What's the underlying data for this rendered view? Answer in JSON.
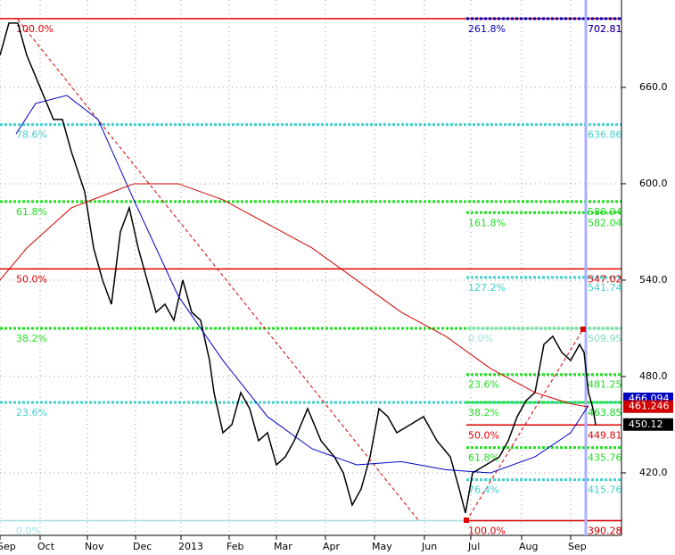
{
  "chart_data": {
    "type": "line",
    "xlim": [
      0,
      697
    ],
    "ylim": [
      381.1,
      714.4
    ],
    "yticks": [
      {
        "value": 420,
        "label": "420.0"
      },
      {
        "value": 480,
        "label": "480.0"
      },
      {
        "value": 540,
        "label": "540.0"
      },
      {
        "value": 600,
        "label": "600.0"
      },
      {
        "value": 660,
        "label": "660.0"
      }
    ],
    "xticks": [
      {
        "value": 0,
        "label": "Sep"
      },
      {
        "value": 45,
        "label": "Oct"
      },
      {
        "value": 98,
        "label": "Nov"
      },
      {
        "value": 152,
        "label": "Dec"
      },
      {
        "value": 203,
        "label": "2013"
      },
      {
        "value": 257,
        "label": "Feb"
      },
      {
        "value": 310,
        "label": "Mar"
      },
      {
        "value": 365,
        "label": "Apr"
      },
      {
        "value": 420,
        "label": "May"
      },
      {
        "value": 476,
        "label": "Jun"
      },
      {
        "value": 528,
        "label": "Jul"
      },
      {
        "value": 585,
        "label": "Aug"
      },
      {
        "value": 640,
        "label": "Sep"
      }
    ],
    "grid": true,
    "series": [
      {
        "color": "#000000",
        "x": [
          0,
          10,
          20,
          30,
          45,
          60,
          70,
          80,
          95,
          105,
          115,
          125,
          135,
          145,
          155,
          165,
          175,
          185,
          195,
          205,
          215,
          225,
          235,
          240,
          250,
          260,
          270,
          280,
          290,
          300,
          310,
          320,
          330,
          345,
          360,
          375,
          385,
          395,
          405,
          415,
          425,
          435,
          445,
          460,
          475,
          490,
          505,
          515,
          522,
          530,
          545,
          560,
          570,
          580,
          590,
          600,
          610,
          620,
          630,
          640,
          650,
          655,
          660,
          665,
          668
        ],
        "values": [
          680,
          700,
          700,
          680,
          660,
          640,
          640,
          620,
          595,
          560,
          540,
          525,
          570,
          585,
          560,
          540,
          520,
          525,
          515,
          540,
          520,
          515,
          490,
          470,
          445,
          450,
          470,
          460,
          440,
          445,
          425,
          430,
          440,
          460,
          440,
          430,
          420,
          400,
          410,
          430,
          460,
          455,
          445,
          450,
          455,
          440,
          430,
          410,
          395,
          420,
          425,
          430,
          440,
          455,
          465,
          470,
          500,
          505,
          495,
          490,
          500,
          495,
          470,
          460,
          450
        ]
      },
      {
        "color": "#0000c0",
        "x": [
          18,
          40,
          75,
          110,
          150,
          200,
          250,
          300,
          350,
          400,
          450,
          500,
          550,
          600,
          640,
          660
        ],
        "values": [
          631,
          650,
          655,
          640,
          590,
          530,
          490,
          455,
          435,
          425,
          427,
          422,
          420,
          430,
          445,
          462
        ]
      },
      {
        "color": "#d00000",
        "x": [
          0,
          30,
          80,
          150,
          200,
          250,
          300,
          350,
          400,
          450,
          500,
          550,
          600,
          640,
          660
        ],
        "values": [
          540,
          560,
          585,
          600,
          600,
          590,
          575,
          560,
          540,
          520,
          505,
          485,
          470,
          463,
          461
        ]
      }
    ],
    "retracement": [
      {
        "value": 702.81,
        "label": "100.0%",
        "color": "#e00000",
        "style": "solid"
      },
      {
        "value": 636.86,
        "label": "78.6%",
        "color": "#40d0d0",
        "style": "dotted"
      },
      {
        "value": 588.94,
        "label": "61.8%",
        "color": "#20e020",
        "style": "dotted"
      },
      {
        "value": 547.02,
        "label": "50.0%",
        "color": "#e00000",
        "style": "solid"
      },
      {
        "value": 509.95,
        "label": "38.2%",
        "color": "#20e020",
        "style": "dotted"
      },
      {
        "value": 463.85,
        "label": "23.6%",
        "color": "#40d0d0",
        "style": "dotted"
      },
      {
        "value": 390.28,
        "label": "0.0%",
        "color": "#a0e0e0",
        "style": "solid"
      }
    ],
    "extension": [
      {
        "value": 702.81,
        "label": "261.8%",
        "color": "#0000c0",
        "style": "dotted"
      },
      {
        "value": 582.04,
        "label": "161.8%",
        "color": "#20e020",
        "style": "dotted"
      },
      {
        "value": 541.74,
        "label": "127.2%",
        "color": "#40d0d0",
        "style": "dotted"
      },
      {
        "value": 509.95,
        "label": "0.0%",
        "color": "#a0e0e0",
        "style": "solid"
      },
      {
        "value": 481.25,
        "label": "23.6%",
        "color": "#20e020",
        "style": "dotted"
      },
      {
        "value": 463.85,
        "label": "38.2%",
        "color": "#20e020",
        "style": "dotted"
      },
      {
        "value": 449.81,
        "label": "50.0%",
        "color": "#e00000",
        "style": "solid"
      },
      {
        "value": 435.76,
        "label": "61.8%",
        "color": "#20e020",
        "style": "dotted"
      },
      {
        "value": 415.76,
        "label": "76.4%",
        "color": "#40d0d0",
        "style": "dotted"
      },
      {
        "value": 390.28,
        "label": "100.0%",
        "color": "#e00000",
        "style": "solid"
      }
    ],
    "price_tags": [
      {
        "value": 466.094,
        "color": "#0000c0"
      },
      {
        "value": 461.246,
        "color": "#d00000"
      },
      {
        "value": 450.12,
        "color": "#000000"
      }
    ]
  }
}
